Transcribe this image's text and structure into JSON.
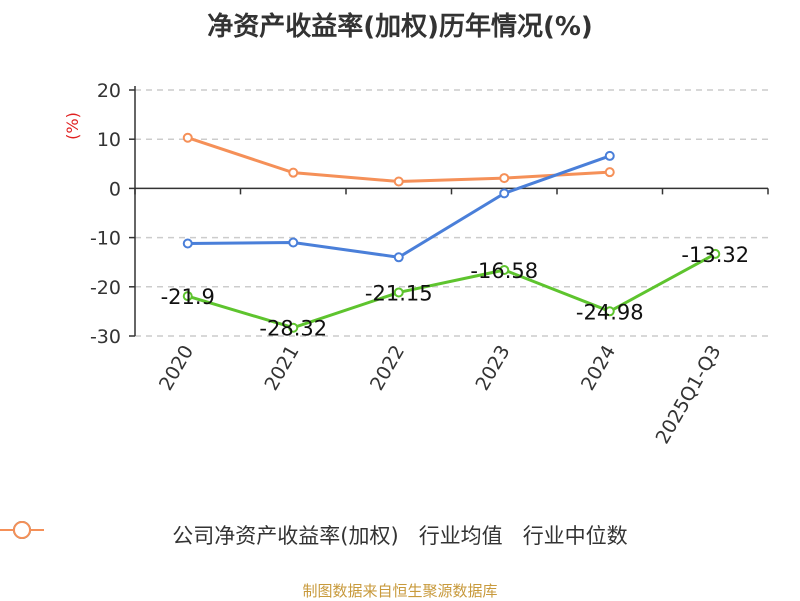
{
  "chart_data": {
    "type": "line",
    "title": "净资产收益率(加权)历年情况(%)",
    "ylabel": "(%)",
    "ylim": [
      -30,
      20
    ],
    "yticks": [
      "20",
      "10",
      "0",
      "-10",
      "-20",
      "-30"
    ],
    "categories": [
      "2020",
      "2021",
      "2022",
      "2023",
      "2024",
      "2025Q1-Q3"
    ],
    "grid": true,
    "legend_position": "bottom",
    "series": [
      {
        "name": "公司净资产收益率(加权)",
        "color": "#5ec42e",
        "values": [
          -21.9,
          -28.32,
          -21.15,
          -16.58,
          -24.98,
          -13.32
        ],
        "labels": [
          "-21.9",
          "-28.32",
          "-21.15",
          "-16.58",
          "-24.98",
          "-13.32"
        ]
      },
      {
        "name": "行业均值",
        "color": "#4a7fd9",
        "values": [
          -11.2,
          -11.0,
          -14.0,
          -1.0,
          6.6,
          null
        ]
      },
      {
        "name": "行业中位数",
        "color": "#f59058",
        "values": [
          10.3,
          3.2,
          1.4,
          2.1,
          3.3,
          null
        ]
      }
    ]
  },
  "footer": "制图数据来自恒生聚源数据库"
}
